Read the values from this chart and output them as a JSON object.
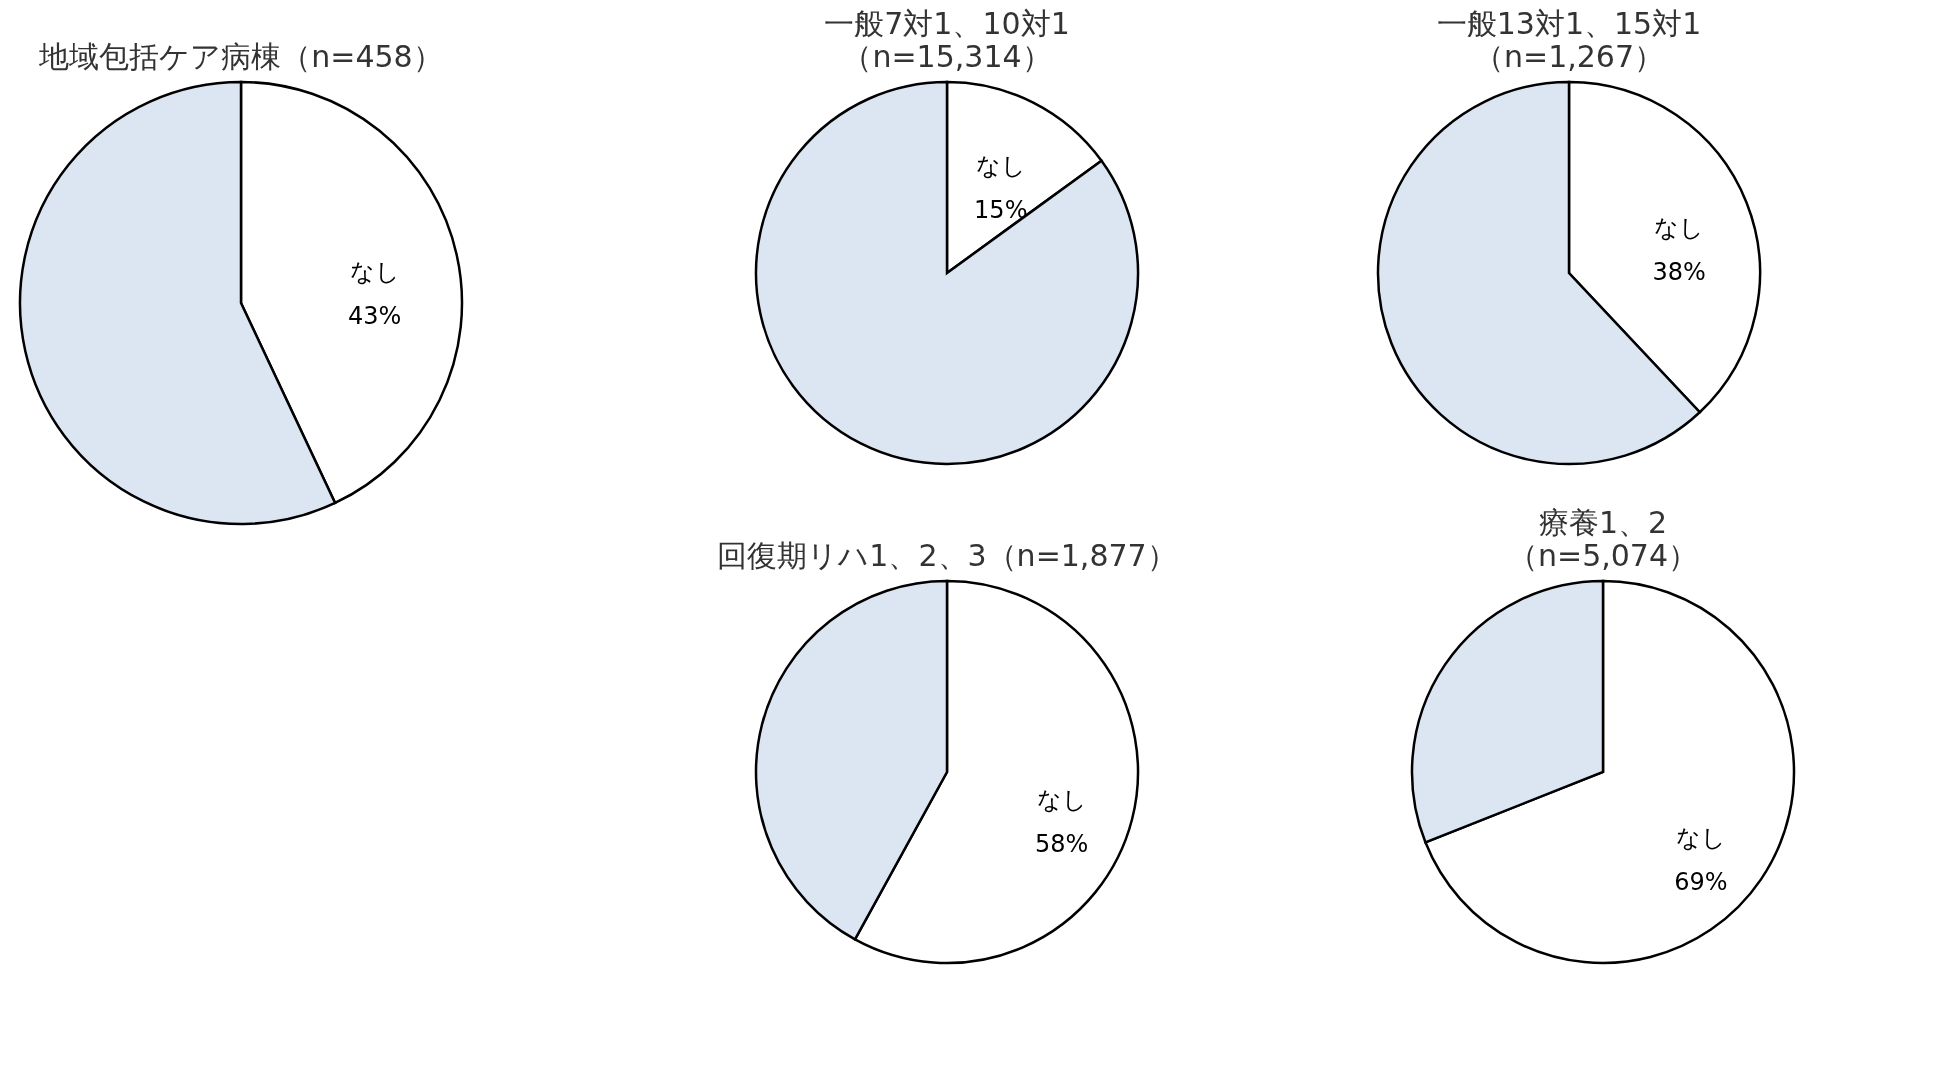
{
  "chart_data": [
    {
      "type": "pie",
      "title": "地域包括ケア病棟（n=458）",
      "categories": [
        "なし",
        null
      ],
      "values": [
        43,
        57
      ],
      "colors": [
        "#ffffff",
        "#dce6f2"
      ],
      "value_labels": [
        "43%",
        null
      ],
      "legend": false
    },
    {
      "type": "pie",
      "title": "一般7対1、10対1",
      "subtitle": "（n=15,314）",
      "categories": [
        "なし",
        null
      ],
      "values": [
        15,
        85
      ],
      "colors": [
        "#ffffff",
        "#dce6f2"
      ],
      "value_labels": [
        "15%",
        null
      ],
      "legend": false
    },
    {
      "type": "pie",
      "title": "一般13対1、15対1",
      "subtitle": "（n=1,267）",
      "categories": [
        "なし",
        null
      ],
      "values": [
        38,
        62
      ],
      "colors": [
        "#ffffff",
        "#dce6f2"
      ],
      "value_labels": [
        "38%",
        null
      ],
      "legend": false
    },
    {
      "type": "pie",
      "title": "回復期リハ1、2、3（n=1,877）",
      "categories": [
        "なし",
        null
      ],
      "values": [
        58,
        42
      ],
      "colors": [
        "#ffffff",
        "#dce6f2"
      ],
      "value_labels": [
        "58%",
        null
      ],
      "legend": false
    },
    {
      "type": "pie",
      "title": "療養1、2",
      "subtitle": "（n=5,074）",
      "categories": [
        "なし",
        null
      ],
      "values": [
        69,
        31
      ],
      "colors": [
        "#ffffff",
        "#dce6f2"
      ],
      "value_labels": [
        "69%",
        null
      ],
      "legend": false
    }
  ]
}
